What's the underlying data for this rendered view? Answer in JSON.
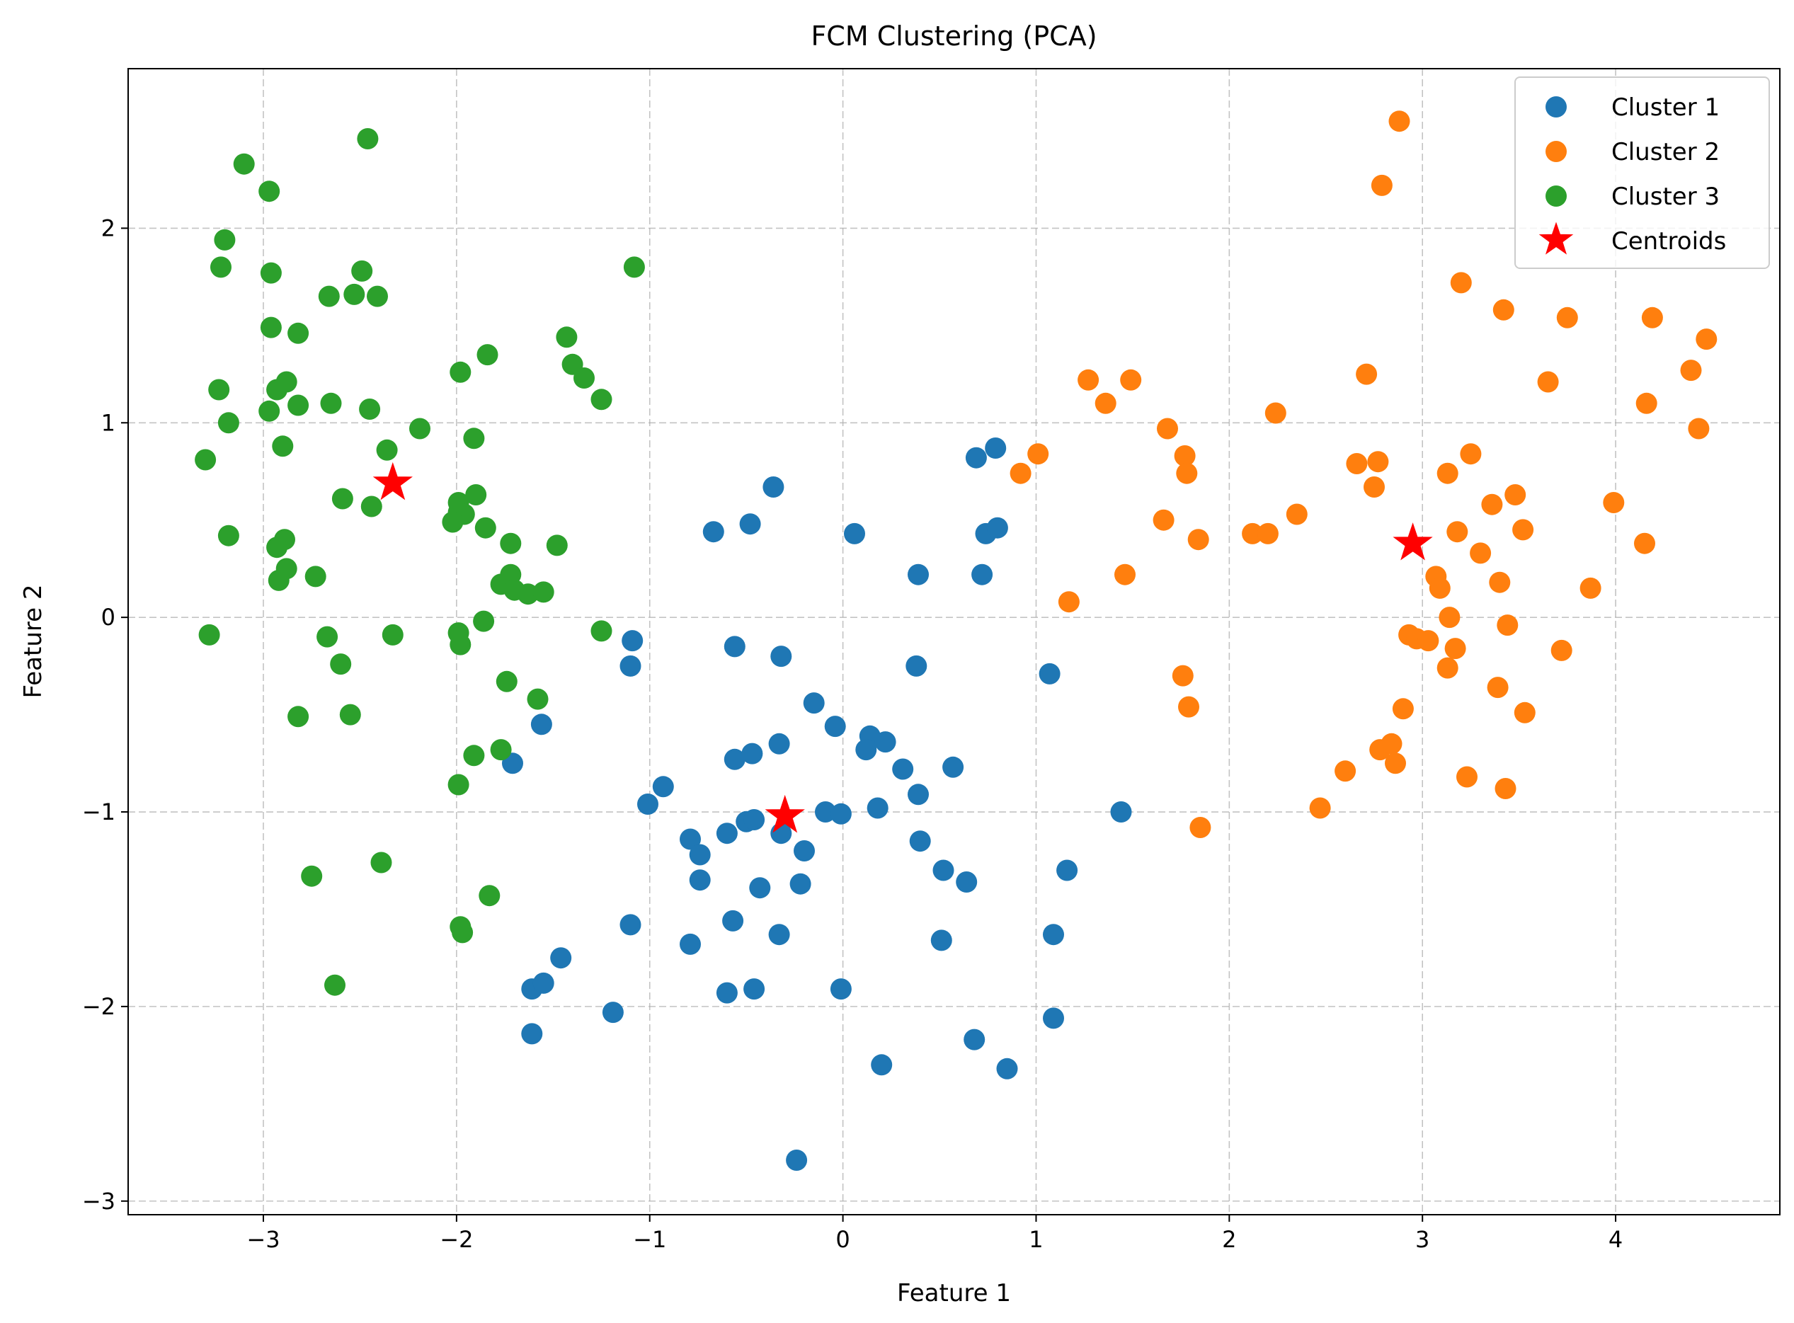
{
  "chart_data": {
    "type": "scatter",
    "title": "FCM Clustering (PCA)",
    "xlabel": "Feature 1",
    "ylabel": "Feature 2",
    "xlim": [
      -3.7,
      4.85
    ],
    "ylim": [
      -3.07,
      2.82
    ],
    "xticks": [
      -3,
      -2,
      -1,
      0,
      1,
      2,
      3,
      4
    ],
    "yticks": [
      -3,
      -2,
      -1,
      0,
      1,
      2
    ],
    "grid": true,
    "legend_position": "top-right",
    "series": [
      {
        "name": "Cluster 1",
        "color": "#1f77b4",
        "marker": "circle",
        "points": [
          [
            -0.36,
            0.67
          ],
          [
            -0.67,
            0.44
          ],
          [
            -0.48,
            0.48
          ],
          [
            0.06,
            0.43
          ],
          [
            -0.56,
            -0.15
          ],
          [
            -0.32,
            -0.2
          ],
          [
            -1.09,
            -0.12
          ],
          [
            -1.1,
            -0.25
          ],
          [
            -1.56,
            -0.55
          ],
          [
            -1.71,
            -0.75
          ],
          [
            -0.56,
            -0.73
          ],
          [
            -0.47,
            -0.7
          ],
          [
            -0.33,
            -0.65
          ],
          [
            -0.15,
            -0.44
          ],
          [
            -0.04,
            -0.56
          ],
          [
            0.14,
            -0.61
          ],
          [
            0.22,
            -0.64
          ],
          [
            0.12,
            -0.68
          ],
          [
            0.31,
            -0.78
          ],
          [
            0.57,
            -0.77
          ],
          [
            0.39,
            -0.91
          ],
          [
            -0.93,
            -0.87
          ],
          [
            -1.01,
            -0.96
          ],
          [
            -0.09,
            -1.0
          ],
          [
            -0.01,
            -1.01
          ],
          [
            0.18,
            -0.98
          ],
          [
            -0.5,
            -1.05
          ],
          [
            -0.46,
            -1.04
          ],
          [
            -0.6,
            -1.11
          ],
          [
            -0.79,
            -1.14
          ],
          [
            -0.74,
            -1.22
          ],
          [
            -0.32,
            -1.11
          ],
          [
            -0.2,
            -1.2
          ],
          [
            0.4,
            -1.15
          ],
          [
            -0.74,
            -1.35
          ],
          [
            -0.43,
            -1.39
          ],
          [
            -0.22,
            -1.37
          ],
          [
            0.52,
            -1.3
          ],
          [
            0.64,
            -1.36
          ],
          [
            1.16,
            -1.3
          ],
          [
            -1.1,
            -1.58
          ],
          [
            -0.57,
            -1.56
          ],
          [
            -0.33,
            -1.63
          ],
          [
            -0.79,
            -1.68
          ],
          [
            0.51,
            -1.66
          ],
          [
            1.09,
            -1.63
          ],
          [
            -1.46,
            -1.75
          ],
          [
            -1.61,
            -1.91
          ],
          [
            -1.55,
            -1.88
          ],
          [
            -0.6,
            -1.93
          ],
          [
            -0.46,
            -1.91
          ],
          [
            -0.01,
            -1.91
          ],
          [
            -1.19,
            -2.03
          ],
          [
            -1.61,
            -2.14
          ],
          [
            0.68,
            -2.17
          ],
          [
            1.09,
            -2.06
          ],
          [
            0.2,
            -2.3
          ],
          [
            0.85,
            -2.32
          ],
          [
            -0.24,
            -2.79
          ],
          [
            0.38,
            -0.25
          ],
          [
            1.07,
            -0.29
          ],
          [
            1.44,
            -1.0
          ],
          [
            0.69,
            0.82
          ],
          [
            0.79,
            0.87
          ],
          [
            0.74,
            0.43
          ],
          [
            0.8,
            0.46
          ],
          [
            0.72,
            0.22
          ],
          [
            0.39,
            0.22
          ]
        ]
      },
      {
        "name": "Cluster 2",
        "color": "#ff7f0e",
        "marker": "circle",
        "points": [
          [
            2.88,
            2.55
          ],
          [
            2.79,
            2.22
          ],
          [
            3.2,
            1.72
          ],
          [
            3.42,
            1.58
          ],
          [
            3.75,
            1.54
          ],
          [
            4.19,
            1.54
          ],
          [
            4.47,
            1.43
          ],
          [
            4.39,
            1.27
          ],
          [
            3.65,
            1.21
          ],
          [
            4.16,
            1.1
          ],
          [
            4.43,
            0.97
          ],
          [
            2.71,
            1.25
          ],
          [
            1.27,
            1.22
          ],
          [
            1.49,
            1.22
          ],
          [
            1.36,
            1.1
          ],
          [
            2.24,
            1.05
          ],
          [
            1.68,
            0.97
          ],
          [
            0.92,
            0.74
          ],
          [
            1.01,
            0.84
          ],
          [
            1.77,
            0.83
          ],
          [
            1.78,
            0.74
          ],
          [
            2.66,
            0.79
          ],
          [
            2.77,
            0.8
          ],
          [
            2.75,
            0.67
          ],
          [
            3.13,
            0.74
          ],
          [
            3.25,
            0.84
          ],
          [
            3.48,
            0.63
          ],
          [
            3.36,
            0.58
          ],
          [
            3.99,
            0.59
          ],
          [
            2.35,
            0.53
          ],
          [
            1.66,
            0.5
          ],
          [
            1.84,
            0.4
          ],
          [
            2.12,
            0.43
          ],
          [
            2.2,
            0.43
          ],
          [
            3.18,
            0.44
          ],
          [
            3.3,
            0.33
          ],
          [
            3.52,
            0.45
          ],
          [
            4.15,
            0.38
          ],
          [
            1.46,
            0.22
          ],
          [
            1.17,
            0.08
          ],
          [
            3.07,
            0.21
          ],
          [
            3.09,
            0.15
          ],
          [
            3.4,
            0.18
          ],
          [
            3.87,
            0.15
          ],
          [
            3.14,
            0.0
          ],
          [
            2.93,
            -0.09
          ],
          [
            2.97,
            -0.11
          ],
          [
            3.03,
            -0.12
          ],
          [
            3.17,
            -0.16
          ],
          [
            3.44,
            -0.04
          ],
          [
            3.72,
            -0.17
          ],
          [
            3.13,
            -0.26
          ],
          [
            1.76,
            -0.3
          ],
          [
            1.79,
            -0.46
          ],
          [
            2.9,
            -0.47
          ],
          [
            3.39,
            -0.36
          ],
          [
            3.53,
            -0.49
          ],
          [
            2.78,
            -0.68
          ],
          [
            2.84,
            -0.65
          ],
          [
            2.86,
            -0.75
          ],
          [
            2.6,
            -0.79
          ],
          [
            3.23,
            -0.82
          ],
          [
            3.43,
            -0.88
          ],
          [
            2.47,
            -0.98
          ],
          [
            1.85,
            -1.08
          ]
        ]
      },
      {
        "name": "Cluster 3",
        "color": "#2ca02c",
        "marker": "circle",
        "points": [
          [
            -2.46,
            2.46
          ],
          [
            -3.1,
            2.33
          ],
          [
            -2.97,
            2.19
          ],
          [
            -3.2,
            1.94
          ],
          [
            -3.22,
            1.8
          ],
          [
            -2.96,
            1.77
          ],
          [
            -2.49,
            1.78
          ],
          [
            -2.66,
            1.65
          ],
          [
            -2.53,
            1.66
          ],
          [
            -2.41,
            1.65
          ],
          [
            -2.96,
            1.49
          ],
          [
            -2.82,
            1.46
          ],
          [
            -1.43,
            1.44
          ],
          [
            -1.08,
            1.8
          ],
          [
            -1.84,
            1.35
          ],
          [
            -1.4,
            1.3
          ],
          [
            -1.34,
            1.23
          ],
          [
            -1.25,
            1.12
          ],
          [
            -3.23,
            1.17
          ],
          [
            -2.93,
            1.17
          ],
          [
            -2.88,
            1.21
          ],
          [
            -2.97,
            1.06
          ],
          [
            -2.82,
            1.09
          ],
          [
            -2.65,
            1.1
          ],
          [
            -2.45,
            1.07
          ],
          [
            -1.98,
            1.26
          ],
          [
            -3.18,
            1.0
          ],
          [
            -2.19,
            0.97
          ],
          [
            -2.9,
            0.88
          ],
          [
            -2.36,
            0.86
          ],
          [
            -1.91,
            0.92
          ],
          [
            -3.3,
            0.81
          ],
          [
            -2.59,
            0.61
          ],
          [
            -2.44,
            0.57
          ],
          [
            -1.99,
            0.59
          ],
          [
            -1.9,
            0.63
          ],
          [
            -1.99,
            0.54
          ],
          [
            -1.96,
            0.53
          ],
          [
            -2.02,
            0.49
          ],
          [
            -1.85,
            0.46
          ],
          [
            -3.18,
            0.42
          ],
          [
            -2.89,
            0.4
          ],
          [
            -2.93,
            0.36
          ],
          [
            -1.72,
            0.38
          ],
          [
            -1.48,
            0.37
          ],
          [
            -2.88,
            0.25
          ],
          [
            -2.92,
            0.19
          ],
          [
            -2.73,
            0.21
          ],
          [
            -1.77,
            0.17
          ],
          [
            -1.72,
            0.22
          ],
          [
            -1.7,
            0.14
          ],
          [
            -1.63,
            0.12
          ],
          [
            -1.55,
            0.13
          ],
          [
            -1.86,
            -0.02
          ],
          [
            -3.28,
            -0.09
          ],
          [
            -2.67,
            -0.1
          ],
          [
            -2.33,
            -0.09
          ],
          [
            -1.99,
            -0.08
          ],
          [
            -1.98,
            -0.14
          ],
          [
            -1.25,
            -0.07
          ],
          [
            -2.6,
            -0.24
          ],
          [
            -1.74,
            -0.33
          ],
          [
            -1.58,
            -0.42
          ],
          [
            -2.82,
            -0.51
          ],
          [
            -2.55,
            -0.5
          ],
          [
            -1.91,
            -0.71
          ],
          [
            -1.77,
            -0.68
          ],
          [
            -1.99,
            -0.86
          ],
          [
            -2.39,
            -1.26
          ],
          [
            -2.75,
            -1.33
          ],
          [
            -1.98,
            -1.59
          ],
          [
            -1.97,
            -1.62
          ],
          [
            -1.83,
            -1.43
          ],
          [
            -2.63,
            -1.89
          ]
        ]
      }
    ],
    "centroids": {
      "name": "Centroids",
      "color": "#ff0000",
      "marker": "star",
      "points": [
        [
          -2.33,
          0.69
        ],
        [
          2.95,
          0.38
        ],
        [
          -0.3,
          -1.02
        ]
      ]
    }
  }
}
